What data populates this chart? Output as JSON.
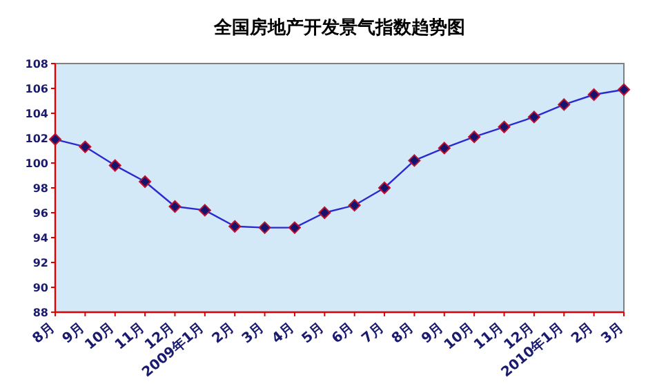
{
  "chart_data": {
    "type": "line",
    "title": "全国房地产开发景气指数趋势图",
    "categories": [
      "8月",
      "9月",
      "10月",
      "11月",
      "12月",
      "2009年1月",
      "2月",
      "3月",
      "4月",
      "5月",
      "6月",
      "7月",
      "8月",
      "9月",
      "10月",
      "11月",
      "12月",
      "2010年1月",
      "2月",
      "3月"
    ],
    "values": [
      101.9,
      101.3,
      99.8,
      98.5,
      96.5,
      96.2,
      94.9,
      94.8,
      94.8,
      96.0,
      96.6,
      98.0,
      100.2,
      101.2,
      102.1,
      102.9,
      103.7,
      104.7,
      105.5,
      105.9
    ],
    "color": "#2a2ad0",
    "marker": "diamond",
    "grid": false,
    "ylim": [
      88,
      108
    ],
    "yticks": [
      88,
      90,
      92,
      94,
      96,
      98,
      100,
      102,
      104,
      106,
      108
    ]
  }
}
